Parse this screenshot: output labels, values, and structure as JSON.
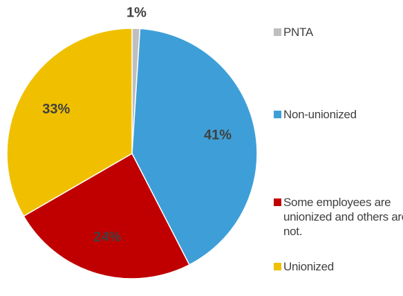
{
  "chart_data": {
    "type": "pie",
    "categories": [
      "PNTA",
      "Non-unionized",
      "Some employees are unionized and others are not.",
      "Unionized"
    ],
    "values": [
      1,
      41,
      24,
      33
    ],
    "value_labels": [
      "1%",
      "41%",
      "24%",
      "33%"
    ],
    "colors": [
      "#bfbfbf",
      "#3e9fd8",
      "#c00000",
      "#f0c000"
    ],
    "legend": "right"
  }
}
